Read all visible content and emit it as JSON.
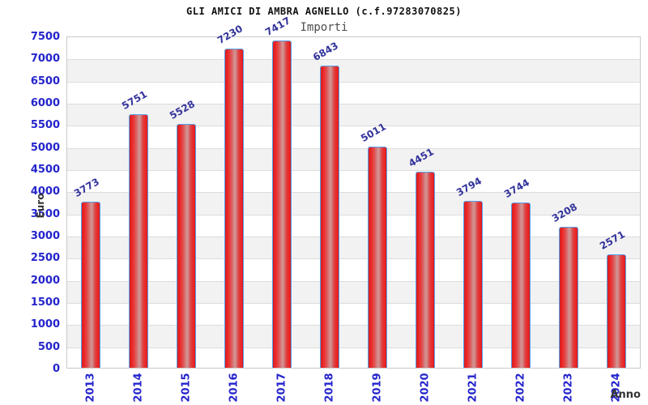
{
  "chart_data": {
    "type": "bar",
    "title": "GLI AMICI DI AMBRA AGNELLO (c.f.97283070825)",
    "legend": "Importi",
    "xlabel": "Anno",
    "ylabel": "Euro",
    "categories": [
      "2013",
      "2014",
      "2015",
      "2016",
      "2017",
      "2018",
      "2019",
      "2020",
      "2021",
      "2022",
      "2023",
      "2024"
    ],
    "values": [
      3773,
      5751,
      5528,
      7230,
      7417,
      6843,
      5011,
      4451,
      3794,
      3744,
      3208,
      2571
    ],
    "ylim": [
      0,
      7500
    ],
    "ytick_step": 500,
    "grid": "horizontal",
    "legend_position": "top-center",
    "colors": {
      "tick_label": "#2424cc",
      "value_label": "#32329b",
      "bar_border": "#55a0ee",
      "bar_red_dark": "#d41f1f",
      "bar_red": "#ee2525",
      "bar_red_light": "#d09a9a",
      "grid_line": "#dcdcdc",
      "band_gray": "#f2f2f2",
      "plot_border": "#c9c9c9",
      "axis_title": "#333333",
      "title": "#111111",
      "legend_text": "#4d4d4d"
    }
  }
}
